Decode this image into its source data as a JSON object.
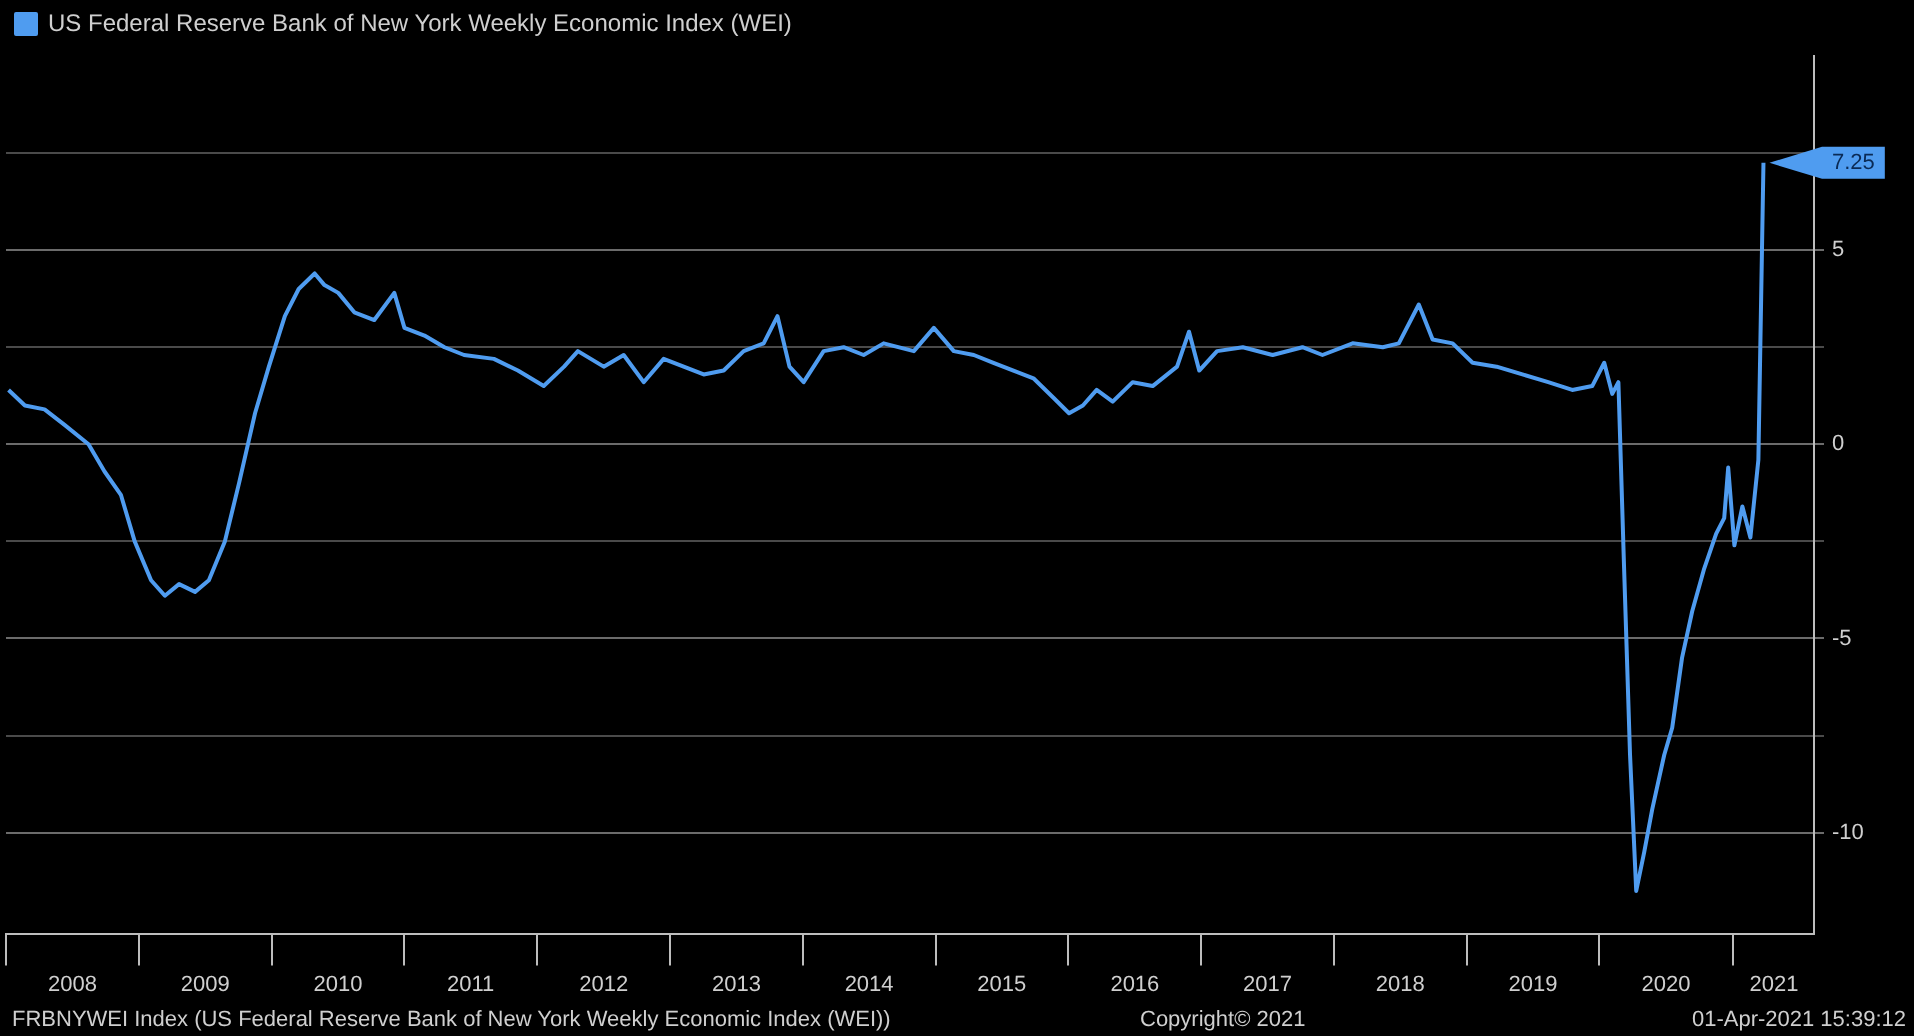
{
  "chart_data": {
    "type": "line",
    "legend": "top left",
    "grid": "y",
    "marker": "none",
    "line_style": "solid",
    "x": [
      "2008-01-08",
      "2008-02-22",
      "2008-04-16",
      "2008-06-10",
      "2008-08-15",
      "2008-09-28",
      "2008-11-12",
      "2008-12-20",
      "2009-02-03",
      "2009-03-13",
      "2009-04-21",
      "2009-06-04",
      "2009-07-12",
      "2009-08-25",
      "2009-10-03",
      "2009-11-16",
      "2009-12-24",
      "2010-02-06",
      "2010-03-16",
      "2010-04-29",
      "2010-05-26",
      "2010-07-03",
      "2010-08-16",
      "2010-10-10",
      "2010-12-04",
      "2011-01-01",
      "2011-02-25",
      "2011-04-21",
      "2011-06-14",
      "2011-09-04",
      "2011-11-09",
      "2012-01-19",
      "2012-03-15",
      "2012-04-22",
      "2012-07-02",
      "2012-08-26",
      "2012-10-20",
      "2012-12-14",
      "2013-02-07",
      "2013-04-03",
      "2013-05-28",
      "2013-07-22",
      "2013-09-15",
      "2013-10-23",
      "2013-11-25",
      "2014-01-03",
      "2014-02-27",
      "2014-04-23",
      "2014-06-17",
      "2014-08-11",
      "2014-11-02",
      "2014-12-27",
      "2015-02-20",
      "2015-04-16",
      "2015-06-09",
      "2015-08-03",
      "2015-09-27",
      "2015-11-21",
      "2016-01-03",
      "2016-02-10",
      "2016-03-19",
      "2016-05-02",
      "2016-06-26",
      "2016-08-20",
      "2016-10-26",
      "2016-11-28",
      "2016-12-26",
      "2017-02-13",
      "2017-04-25",
      "2017-07-16",
      "2017-10-06",
      "2017-11-30",
      "2018-02-21",
      "2018-05-15",
      "2018-06-28",
      "2018-08-22",
      "2018-09-29",
      "2018-11-23",
      "2019-01-17",
      "2019-03-24",
      "2019-06-03",
      "2019-08-13",
      "2019-10-18",
      "2019-12-12",
      "2020-01-14",
      "2020-02-05",
      "2020-02-22",
      "2020-03-08",
      "2020-03-25",
      "2020-04-11",
      "2020-05-03",
      "2020-05-25",
      "2020-06-27",
      "2020-07-19",
      "2020-08-15",
      "2020-09-12",
      "2020-10-15",
      "2020-11-17",
      "2020-12-09",
      "2020-12-20",
      "2021-01-06",
      "2021-01-28",
      "2021-02-19",
      "2021-03-13",
      "2021-03-27"
    ],
    "series": [
      {
        "name": "US Federal Reserve Bank of New York Weekly Economic Index (WEI)",
        "color": "#4f9cf0",
        "values": [
          1.4,
          1.0,
          0.9,
          0.5,
          0.0,
          -0.7,
          -1.3,
          -2.5,
          -3.5,
          -3.9,
          -3.6,
          -3.8,
          -3.5,
          -2.5,
          -1.0,
          0.8,
          2.0,
          3.3,
          4.0,
          4.4,
          4.1,
          3.9,
          3.4,
          3.2,
          3.9,
          3.0,
          2.8,
          2.5,
          2.3,
          2.2,
          1.9,
          1.5,
          2.0,
          2.4,
          2.0,
          2.3,
          1.6,
          2.2,
          2.0,
          1.8,
          1.9,
          2.4,
          2.6,
          3.3,
          2.0,
          1.6,
          2.4,
          2.5,
          2.3,
          2.6,
          2.4,
          3.0,
          2.4,
          2.3,
          2.1,
          1.9,
          1.7,
          1.2,
          0.8,
          1.0,
          1.4,
          1.1,
          1.6,
          1.5,
          2.0,
          2.9,
          1.9,
          2.4,
          2.5,
          2.3,
          2.5,
          2.3,
          2.6,
          2.5,
          2.6,
          3.6,
          2.7,
          2.6,
          2.1,
          2.0,
          1.8,
          1.6,
          1.4,
          1.5,
          2.1,
          1.3,
          1.6,
          -3.0,
          -8.0,
          -11.5,
          -10.5,
          -9.4,
          -8.0,
          -7.3,
          -5.5,
          -4.3,
          -3.2,
          -2.3,
          -1.9,
          -0.6,
          -2.6,
          -1.6,
          -2.4,
          -0.4,
          7.25
        ]
      }
    ],
    "xlim": [
      "2008-01-01",
      "2021-08-13"
    ],
    "xticks": [
      {
        "value": "2008-01-01",
        "label": null
      },
      {
        "value": "2008-07-02",
        "label": "2008"
      },
      {
        "value": "2009-01-01",
        "label": null
      },
      {
        "value": "2009-07-02",
        "label": "2009"
      },
      {
        "value": "2010-01-01",
        "label": null
      },
      {
        "value": "2010-07-02",
        "label": "2010"
      },
      {
        "value": "2011-01-01",
        "label": null
      },
      {
        "value": "2011-07-02",
        "label": "2011"
      },
      {
        "value": "2012-01-01",
        "label": null
      },
      {
        "value": "2012-07-02",
        "label": "2012"
      },
      {
        "value": "2013-01-01",
        "label": null
      },
      {
        "value": "2013-07-02",
        "label": "2013"
      },
      {
        "value": "2014-01-01",
        "label": null
      },
      {
        "value": "2014-07-02",
        "label": "2014"
      },
      {
        "value": "2015-01-01",
        "label": null
      },
      {
        "value": "2015-07-02",
        "label": "2015"
      },
      {
        "value": "2016-01-01",
        "label": null
      },
      {
        "value": "2016-07-02",
        "label": "2016"
      },
      {
        "value": "2017-01-01",
        "label": null
      },
      {
        "value": "2017-07-02",
        "label": "2017"
      },
      {
        "value": "2018-01-01",
        "label": null
      },
      {
        "value": "2018-07-02",
        "label": "2018"
      },
      {
        "value": "2019-01-01",
        "label": null
      },
      {
        "value": "2019-07-02",
        "label": "2019"
      },
      {
        "value": "2020-01-01",
        "label": null
      },
      {
        "value": "2020-07-02",
        "label": "2020"
      },
      {
        "value": "2021-01-01",
        "label": null
      },
      {
        "value": "2021-04-25",
        "label": "2021"
      }
    ],
    "ylim": [
      -12.6,
      10
    ],
    "yticks": [
      {
        "value": -10,
        "label": "-10"
      },
      {
        "value": -7.5,
        "label": null
      },
      {
        "value": -5,
        "label": "-5"
      },
      {
        "value": -2.5,
        "label": null
      },
      0,
      {
        "value": 2.5,
        "label": null
      },
      5,
      {
        "value": 7.5,
        "label": null
      }
    ],
    "annotations": [
      {
        "text": "7.25",
        "x": "2021-03-27",
        "y": 7.25
      },
      "FRBNYWEI Index (US Federal Reserve Bank of New York Weekly Economic Index (WEI))",
      "Copyright© 2021",
      "01-Apr-2021 15:39:12"
    ]
  }
}
